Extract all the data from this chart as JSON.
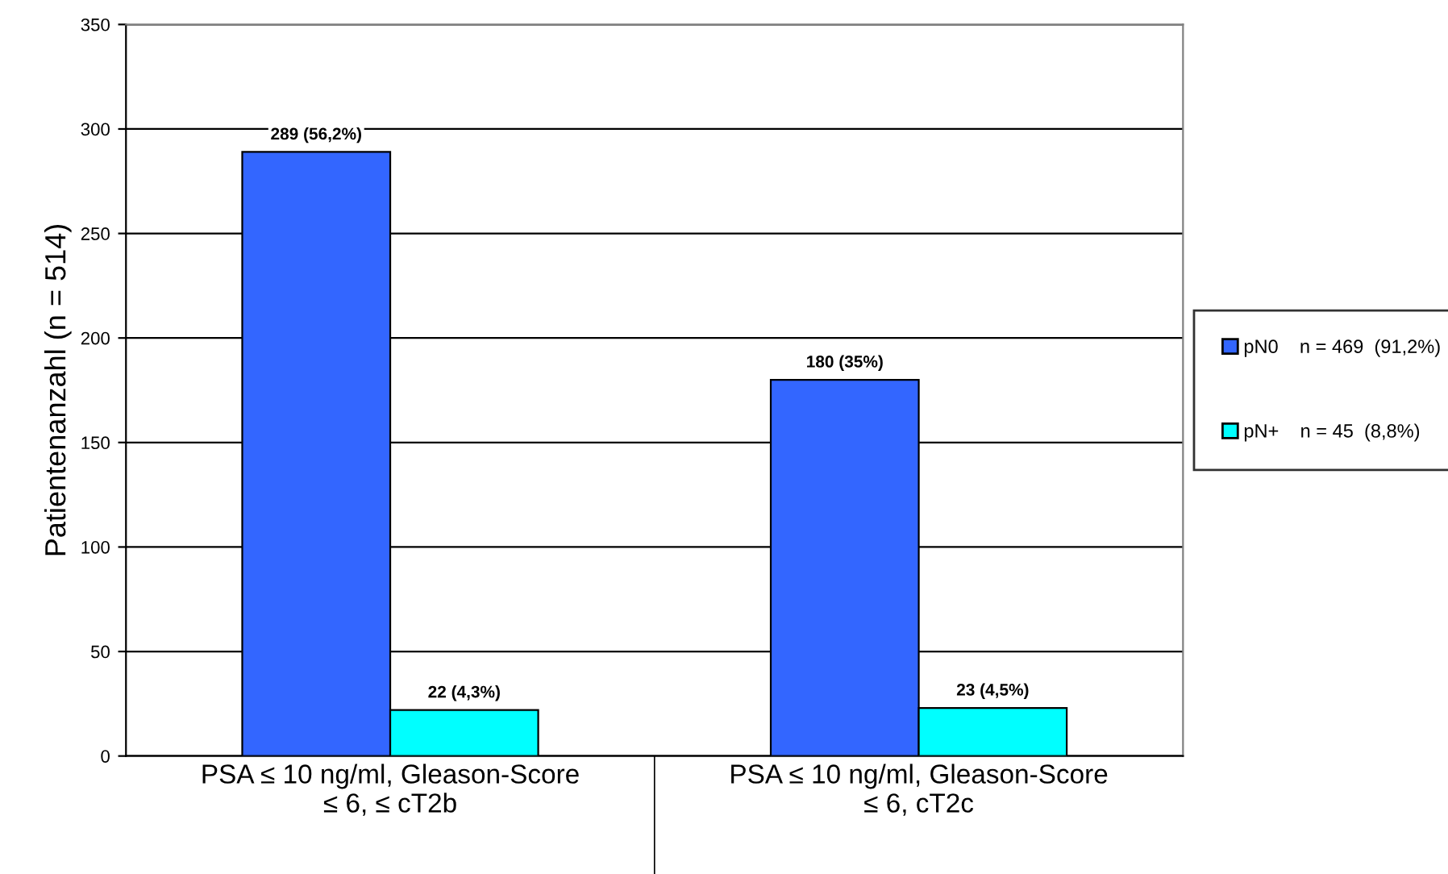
{
  "chart_data": {
    "type": "bar",
    "ylabel": "Patientenanzahl (n = 514)",
    "categories": [
      "PSA ≤ 10 ng/ml, Gleason-Score\n≤ 6, ≤ cT2b",
      "PSA ≤ 10 ng/ml, Gleason-Score\n≤ 6, cT2c"
    ],
    "series": [
      {
        "name": "pN0    n = 469  (91,2%)",
        "color": "#3366ff",
        "values": [
          289,
          180
        ],
        "value_labels": [
          "289 (56,2%)",
          "180 (35%)"
        ]
      },
      {
        "name": "pN+    n = 45  (8,8%)",
        "color": "#00ffff",
        "values": [
          22,
          23
        ],
        "value_labels": [
          "22 (4,3%)",
          "23 (4,5%)"
        ]
      }
    ],
    "ylim": [
      0,
      350
    ],
    "yticks": [
      0,
      50,
      100,
      150,
      200,
      250,
      300,
      350
    ],
    "grid": "y",
    "legend": "right"
  }
}
